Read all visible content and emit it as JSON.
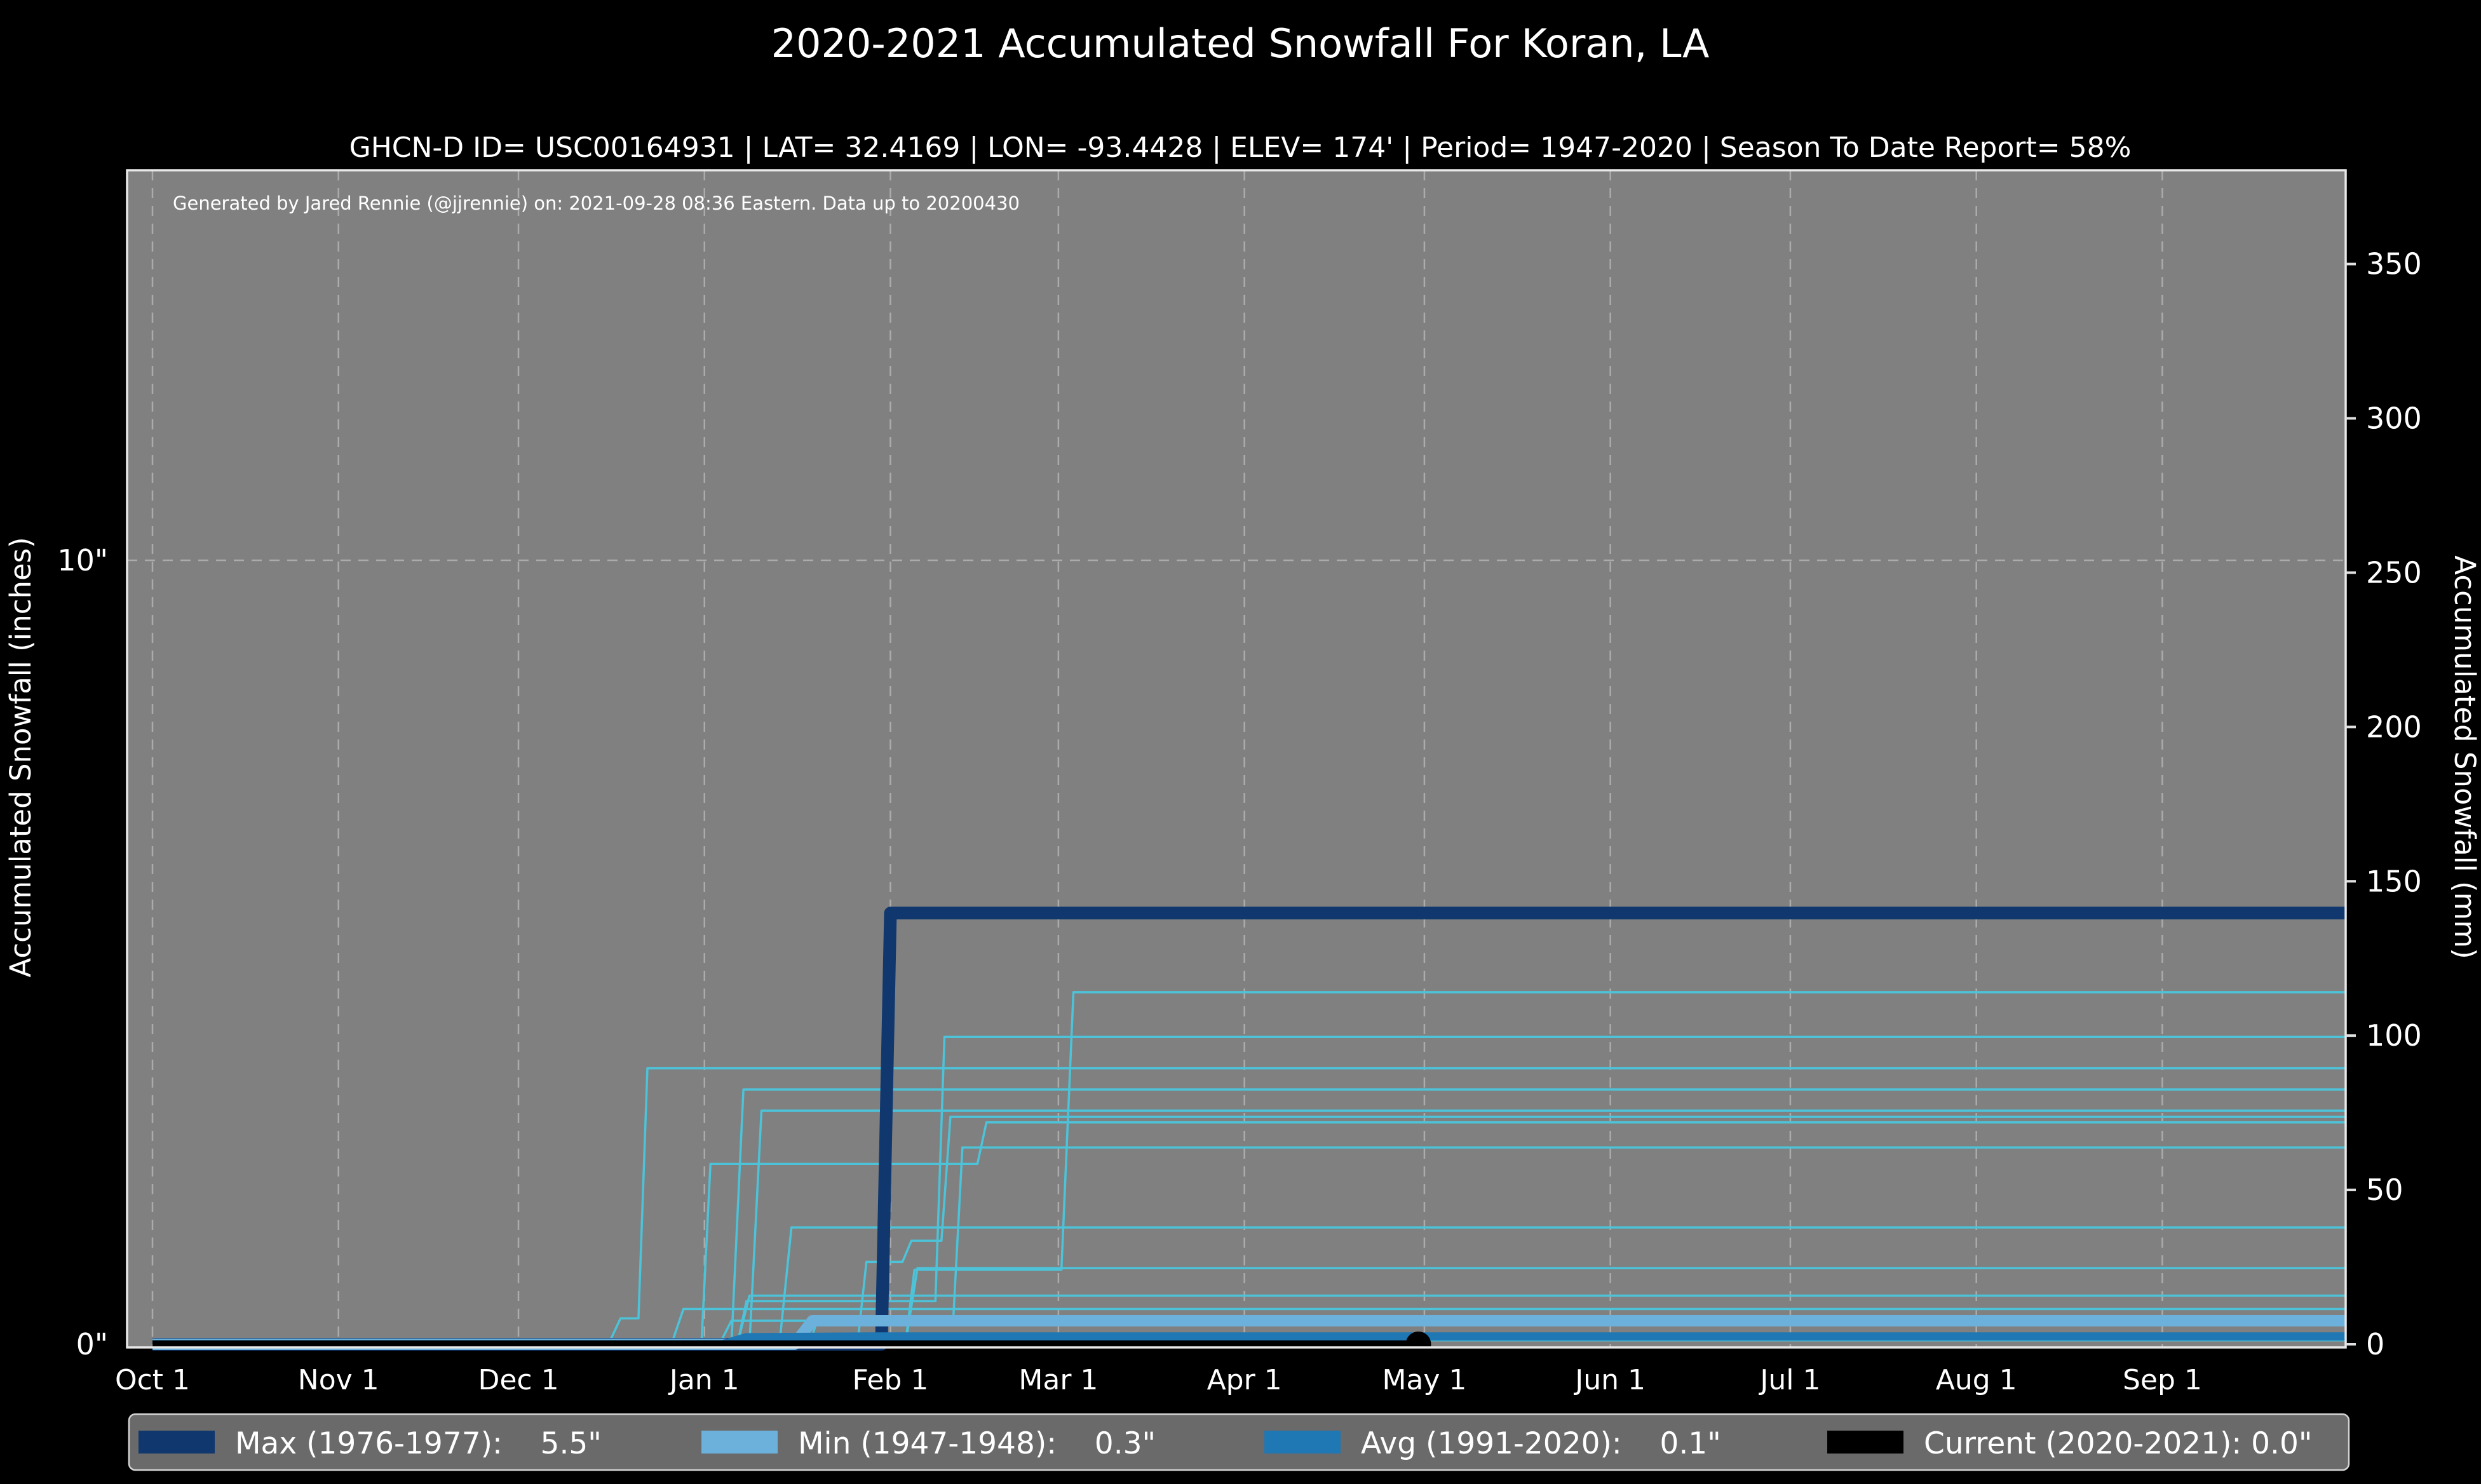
{
  "figure": {
    "background": "#000000",
    "plot_background": "#808080",
    "spine_color": "#e8e8e8",
    "grid_color": "#b3b3b3"
  },
  "chart_data": {
    "type": "line",
    "title": "2020-2021 Accumulated Snowfall For Koran, LA",
    "subtitle": "GHCN-D ID= USC00164931 | LAT= 32.4169 | LON= -93.4428 | ELEV= 174' | Period= 1947-2020 | Season To Date Report= 58%",
    "annotation": "Generated by Jared Rennie (@jjrennie) on: 2021-09-28 08:36 Eastern. Data up to 20200430",
    "x_axis": {
      "month_ticks": [
        {
          "label": "Oct 1",
          "day": 0
        },
        {
          "label": "Nov 1",
          "day": 31
        },
        {
          "label": "Dec 1",
          "day": 61
        },
        {
          "label": "Jan 1",
          "day": 92
        },
        {
          "label": "Feb 1",
          "day": 123
        },
        {
          "label": "Mar 1",
          "day": 151
        },
        {
          "label": "Apr 1",
          "day": 182
        },
        {
          "label": "May 1",
          "day": 212
        },
        {
          "label": "Jun 1",
          "day": 243
        },
        {
          "label": "Jul 1",
          "day": 273
        },
        {
          "label": "Aug 1",
          "day": 304
        },
        {
          "label": "Sep 1",
          "day": 335
        }
      ],
      "days_total": 366,
      "grid": "dashed vertical at each month tick"
    },
    "y_left": {
      "label": "Accumulated Snowfall (inches)",
      "ticks": [
        {
          "value": 0,
          "label": "0\""
        },
        {
          "value": 10,
          "label": "10\""
        }
      ],
      "gridline_values": [
        10
      ],
      "ylim": [
        0,
        15
      ]
    },
    "y_right": {
      "label": "Accumulated Snowfall (mm)",
      "ticks": [
        0,
        50,
        100,
        150,
        200,
        250,
        300,
        350
      ],
      "mm_per_inch": 25.4,
      "ylim": [
        0,
        381
      ]
    },
    "series": [
      {
        "id": "max",
        "name": "Max (1976-1977):",
        "value_label": "5.5\"",
        "color": "#11386e",
        "width": 20,
        "points": [
          [
            0,
            0
          ],
          [
            121.5,
            0
          ],
          [
            123,
            5.5
          ],
          [
            366,
            5.5
          ]
        ]
      },
      {
        "id": "min",
        "name": "Min (1947-1948):",
        "value_label": "0.3\"",
        "color": "#6cb0dc",
        "width": 18,
        "points": [
          [
            0,
            0
          ],
          [
            107,
            0
          ],
          [
            110,
            0.3
          ],
          [
            366,
            0.3
          ]
        ]
      },
      {
        "id": "avg",
        "name": "Avg (1991-2020):",
        "value_label": "0.1\"",
        "color": "#1f77b4",
        "width": 13,
        "points": [
          [
            0,
            0
          ],
          [
            95,
            0
          ],
          [
            99,
            0.09
          ],
          [
            120,
            0.1
          ],
          [
            366,
            0.1
          ]
        ]
      },
      {
        "id": "current",
        "name": "Current (2020-2021):",
        "value_label": "0.0\"",
        "color": "#000000",
        "width": 12,
        "points": [
          [
            0,
            0
          ],
          [
            211,
            0
          ]
        ],
        "end_marker": true,
        "marker_radius": 20
      }
    ],
    "historical_years": {
      "color": "#4cc3d9",
      "width": 3.5,
      "description": "thin step lines, one per reporting season 1947-2020, accumulated inches",
      "lines": [
        [
          [
            0,
            0
          ],
          [
            125.5,
            0
          ],
          [
            127,
            0.95
          ],
          [
            151.5,
            0.95
          ],
          [
            153.5,
            4.49
          ],
          [
            366,
            4.49
          ]
        ],
        [
          [
            0,
            0
          ],
          [
            97.5,
            0
          ],
          [
            99,
            0.55
          ],
          [
            130.5,
            0.55
          ],
          [
            132,
            3.92
          ],
          [
            366,
            3.92
          ]
        ],
        [
          [
            0,
            0
          ],
          [
            76,
            0
          ],
          [
            78,
            0.33
          ],
          [
            81,
            0.33
          ],
          [
            82.5,
            3.52
          ],
          [
            366,
            3.52
          ]
        ],
        [
          [
            0,
            0
          ],
          [
            96.5,
            0
          ],
          [
            98.5,
            3.25
          ],
          [
            366,
            3.25
          ]
        ],
        [
          [
            0,
            0
          ],
          [
            99.5,
            0
          ],
          [
            101.5,
            2.98
          ],
          [
            366,
            2.98
          ]
        ],
        [
          [
            0,
            0
          ],
          [
            117.5,
            0
          ],
          [
            119,
            1.05
          ],
          [
            125,
            1.05
          ],
          [
            126.5,
            1.32
          ],
          [
            131.5,
            1.32
          ],
          [
            133,
            2.9
          ],
          [
            366,
            2.9
          ]
        ],
        [
          [
            0,
            0
          ],
          [
            91.5,
            0
          ],
          [
            93,
            2.3
          ],
          [
            137.5,
            2.3
          ],
          [
            139,
            2.83
          ],
          [
            366,
            2.83
          ]
        ],
        [
          [
            0,
            0
          ],
          [
            109.5,
            0
          ],
          [
            111,
            0.35
          ],
          [
            133.5,
            0.35
          ],
          [
            135,
            2.51
          ],
          [
            366,
            2.51
          ]
        ],
        [
          [
            0,
            0
          ],
          [
            104.5,
            0
          ],
          [
            106.5,
            1.49
          ],
          [
            366,
            1.49
          ]
        ],
        [
          [
            0,
            0
          ],
          [
            125.5,
            0
          ],
          [
            127.5,
            0.97
          ],
          [
            366,
            0.97
          ]
        ],
        [
          [
            0,
            0
          ],
          [
            97.5,
            0
          ],
          [
            99.5,
            0.62
          ],
          [
            366,
            0.62
          ]
        ],
        [
          [
            0,
            0
          ],
          [
            86.5,
            0
          ],
          [
            88.5,
            0.45
          ],
          [
            366,
            0.45
          ]
        ],
        [
          [
            0,
            0
          ],
          [
            94.5,
            0
          ],
          [
            96.5,
            0.3
          ],
          [
            366,
            0.3
          ]
        ],
        [
          [
            0,
            0
          ],
          [
            61,
            0
          ],
          [
            63,
            0.05
          ],
          [
            366,
            0.05
          ]
        ]
      ]
    },
    "legend": [
      {
        "id": "max",
        "label": "Max (1976-1977):",
        "value": "5.5\"",
        "color": "#11386e"
      },
      {
        "id": "min",
        "label": "Min (1947-1948):",
        "value": "0.3\"",
        "color": "#6cb0dc"
      },
      {
        "id": "avg",
        "label": "Avg (1991-2020):",
        "value": "0.1\"",
        "color": "#1f77b4"
      },
      {
        "id": "current",
        "label": "Current (2020-2021):",
        "value": "0.0\"",
        "color": "#000000"
      }
    ],
    "legend_style": {
      "background": "#6a6a6a",
      "border": "#d4d4d4"
    }
  }
}
